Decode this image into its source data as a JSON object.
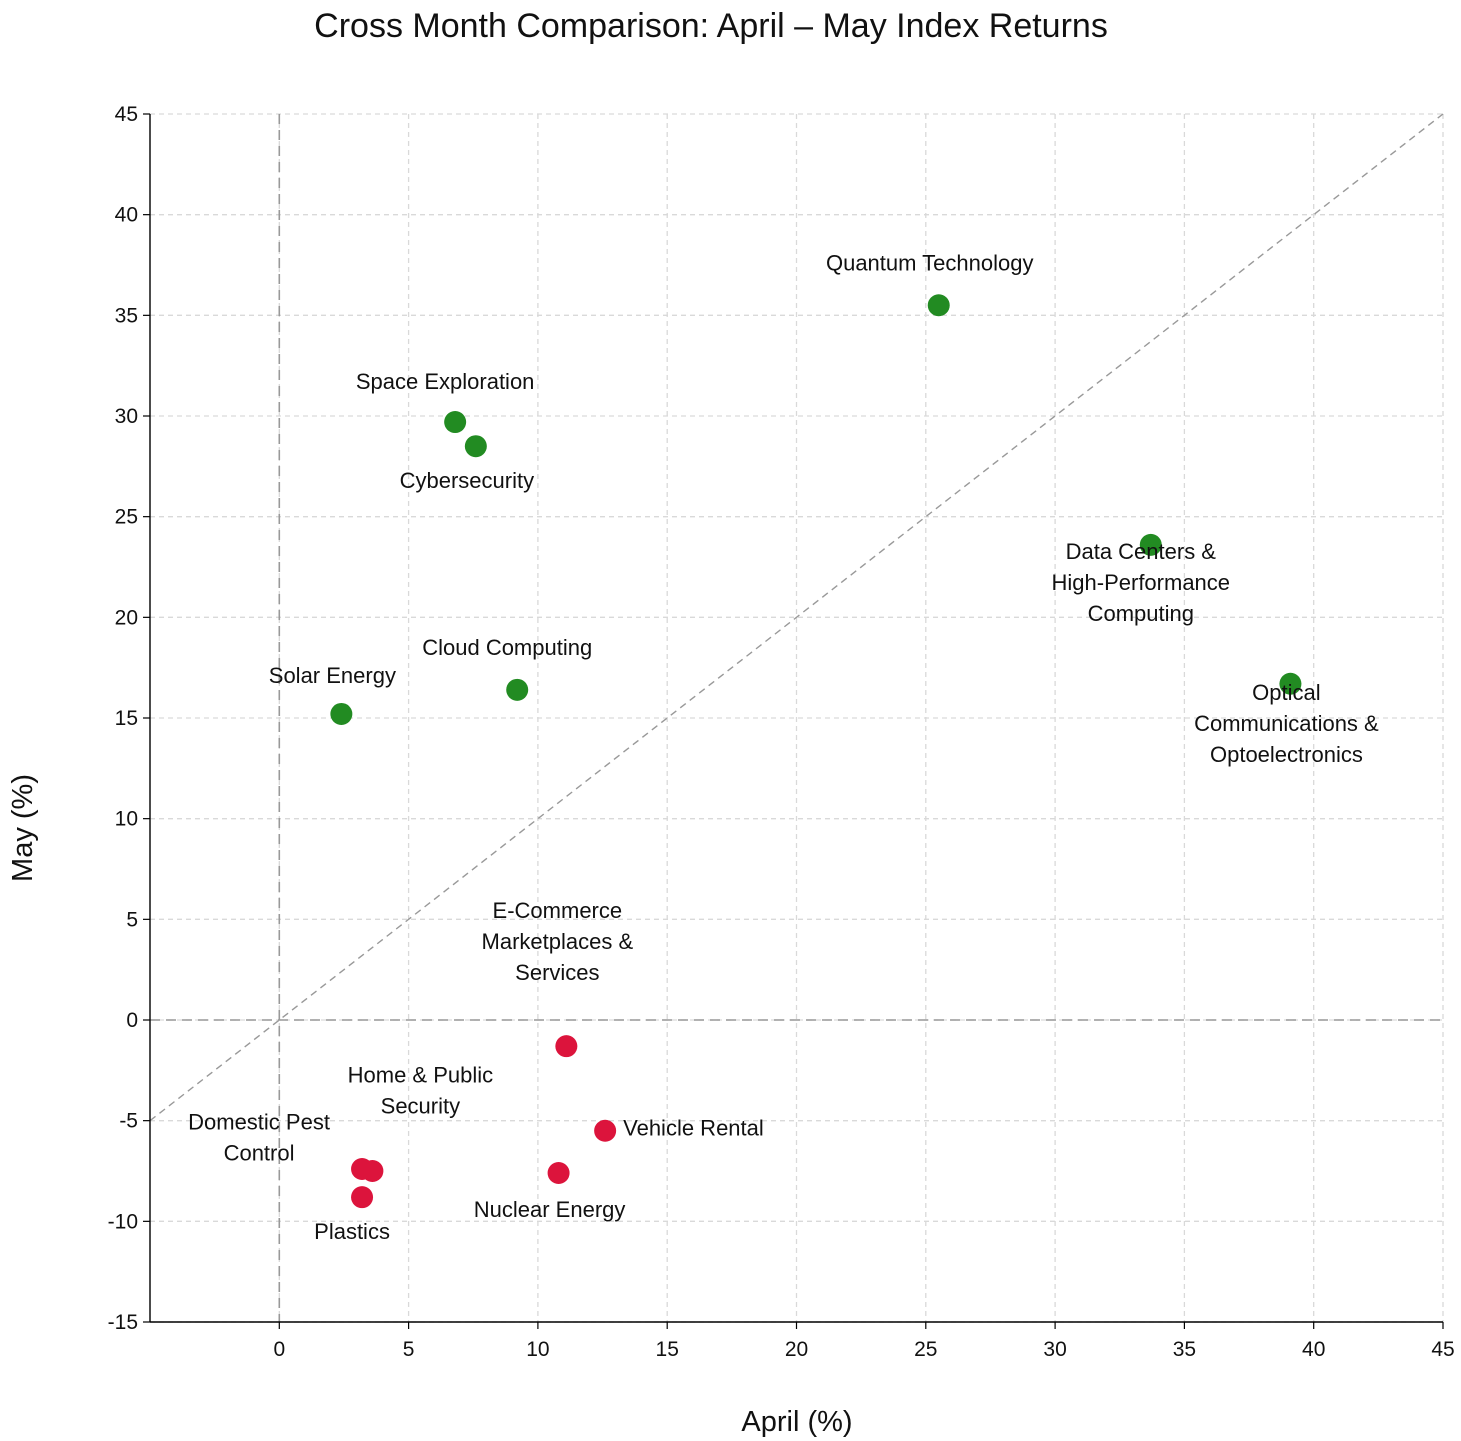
{
  "chart_data": {
    "type": "scatter",
    "title": "Cross Month Comparison: April – May Index Returns",
    "xlabel": "April (%)",
    "ylabel": "May (%)",
    "xlim": [
      -5,
      45
    ],
    "ylim": [
      -15,
      45
    ],
    "x_ticks": [
      0,
      5,
      10,
      15,
      20,
      25,
      30,
      35,
      40,
      45
    ],
    "y_ticks": [
      -15,
      -10,
      -5,
      0,
      5,
      10,
      15,
      20,
      25,
      30,
      35,
      40,
      45
    ],
    "grid": true,
    "reference_lines": [
      "x = 0",
      "y = 0",
      "y = x"
    ],
    "colors": {
      "positive": "#228b22",
      "negative": "#dc143c"
    },
    "points": [
      {
        "name": "Quantum Technology",
        "label_lines": [
          "Quantum Technology"
        ],
        "x": 25.5,
        "y": 35.5
      },
      {
        "name": "Space Exploration",
        "label_lines": [
          "Space Exploration"
        ],
        "x": 6.8,
        "y": 29.7
      },
      {
        "name": "Cybersecurity",
        "label_lines": [
          "Cybersecurity"
        ],
        "x": 7.6,
        "y": 28.5
      },
      {
        "name": "Data Centers & High-Performance Computing",
        "label_lines": [
          "Data Centers &",
          "High-Performance",
          "Computing"
        ],
        "x": 33.7,
        "y": 23.6
      },
      {
        "name": "Optical Communications & Optoelectronics",
        "label_lines": [
          "Optical",
          "Communications &",
          "Optoelectronics"
        ],
        "x": 39.1,
        "y": 16.7
      },
      {
        "name": "Cloud Computing",
        "label_lines": [
          "Cloud Computing"
        ],
        "x": 9.2,
        "y": 16.4
      },
      {
        "name": "Solar Energy",
        "label_lines": [
          "Solar Energy"
        ],
        "x": 2.4,
        "y": 15.2
      },
      {
        "name": "E-Commerce Marketplaces & Services",
        "label_lines": [
          "E-Commerce",
          "Marketplaces &",
          "Services"
        ],
        "x": 11.1,
        "y": -1.3
      },
      {
        "name": "Vehicle Rental",
        "label_lines": [
          "Vehicle Rental"
        ],
        "x": 12.6,
        "y": -5.5
      },
      {
        "name": "Home & Public Security",
        "label_lines": [
          "Home & Public",
          "Security"
        ],
        "x": 3.6,
        "y": -7.5
      },
      {
        "name": "Domestic Pest Control",
        "label_lines": [
          "Domestic Pest",
          "Control"
        ],
        "x": 3.2,
        "y": -7.4
      },
      {
        "name": "Nuclear Energy",
        "label_lines": [
          "Nuclear Energy"
        ],
        "x": 10.8,
        "y": -7.6
      },
      {
        "name": "Plastics",
        "label_lines": [
          "Plastics"
        ],
        "x": 3.2,
        "y": -8.8
      }
    ]
  }
}
